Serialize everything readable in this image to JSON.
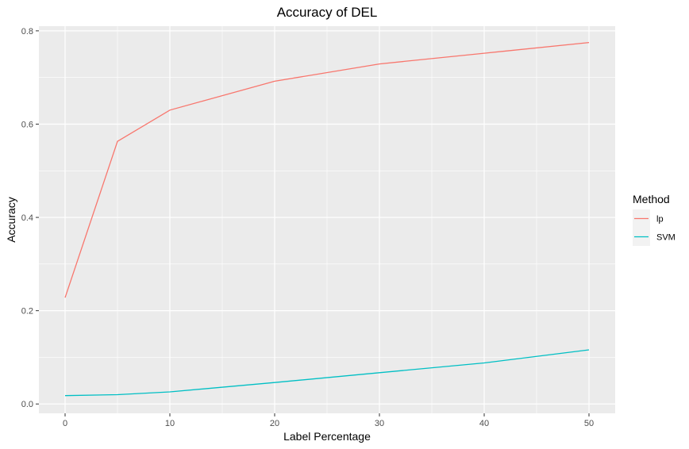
{
  "chart_data": {
    "type": "line",
    "title": "Accuracy of DEL",
    "xlabel": "Label Percentage",
    "ylabel": "Accuracy",
    "xlim": [
      -2.5,
      52.5
    ],
    "ylim": [
      -0.02,
      0.81
    ],
    "x_ticks": [
      0,
      10,
      20,
      30,
      40,
      50
    ],
    "x_tick_labels": [
      "0",
      "10",
      "20",
      "30",
      "40",
      "50"
    ],
    "y_ticks": [
      0.0,
      0.2,
      0.4,
      0.6,
      0.8
    ],
    "y_tick_labels": [
      "0.0",
      "0.2",
      "0.4",
      "0.6",
      "0.8"
    ],
    "grid": true,
    "legend": {
      "title": "Method",
      "position": "right"
    },
    "x": [
      0,
      5,
      10,
      20,
      30,
      40,
      50
    ],
    "series": [
      {
        "name": "lp",
        "color": "#F8766D",
        "values": [
          0.228,
          0.563,
          0.63,
          0.692,
          0.729,
          0.752,
          0.775
        ]
      },
      {
        "name": "SVM",
        "color": "#00BFC4",
        "values": [
          0.018,
          0.02,
          0.026,
          0.046,
          0.067,
          0.088,
          0.116
        ]
      }
    ]
  }
}
